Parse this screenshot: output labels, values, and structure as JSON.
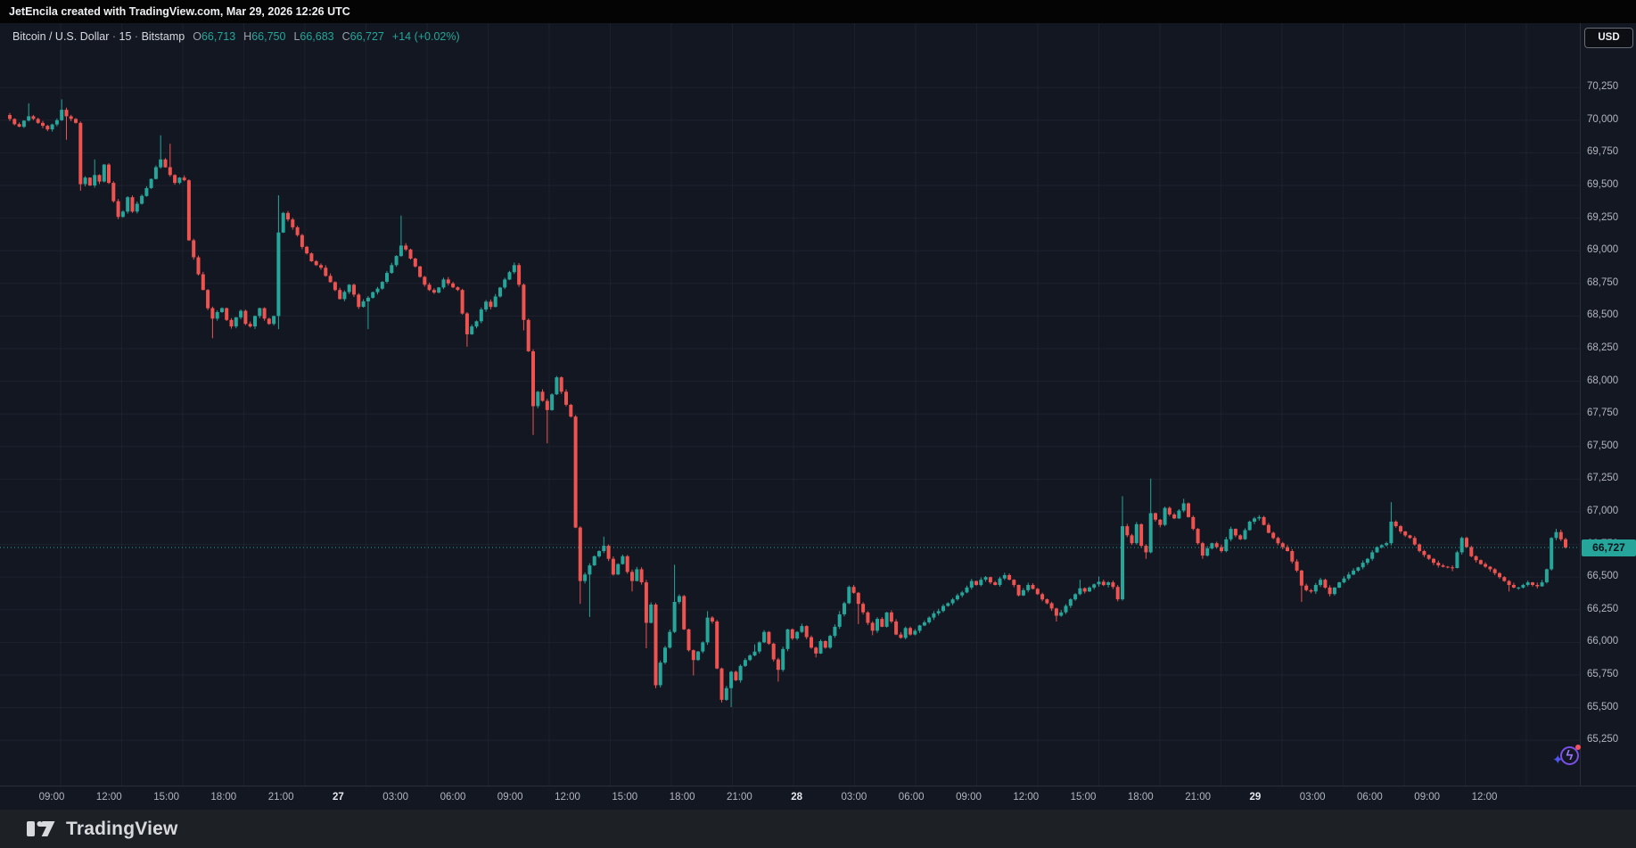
{
  "top_bar": {
    "attribution": "JetEncila created with TradingView.com, Mar 29, 2026 12:26 UTC"
  },
  "header": {
    "symbol": "Bitcoin / U.S. Dollar",
    "separator": "·",
    "interval": "15",
    "exchange": "Bitstamp",
    "o_label": "O",
    "open": "66,713",
    "h_label": "H",
    "high": "66,750",
    "l_label": "L",
    "low": "66,683",
    "c_label": "C",
    "close": "66,727",
    "change": "+14 (+0.02%)"
  },
  "price_axis": {
    "currency_button": "USD",
    "last_price_label": "66,727"
  },
  "footer": {
    "brand": "TradingView"
  },
  "chart_data": {
    "type": "candlestick",
    "title": "Bitcoin / U.S. Dollar · 15 · Bitstamp",
    "ohlc_readout": {
      "open": 66713,
      "high": 66750,
      "low": 66683,
      "close": 66727,
      "change_abs": 14,
      "change_pct": 0.02
    },
    "last_price": 66727,
    "y_axis": {
      "ticks": [
        70250,
        70000,
        69750,
        69500,
        69250,
        69000,
        68750,
        68500,
        68250,
        68000,
        67750,
        67500,
        67250,
        67000,
        66750,
        66500,
        66250,
        66000,
        65750,
        65500,
        65250
      ],
      "visible_range": [
        65100,
        70400
      ],
      "grid": true
    },
    "x_axis": {
      "labels": [
        "09:00",
        "12:00",
        "15:00",
        "18:00",
        "21:00",
        "27",
        "03:00",
        "06:00",
        "09:00",
        "12:00",
        "15:00",
        "18:00",
        "21:00",
        "28",
        "03:00",
        "06:00",
        "09:00",
        "12:00",
        "15:00",
        "18:00",
        "21:00",
        "29",
        "03:00",
        "06:00",
        "09:00",
        "12:00"
      ],
      "day_label_indices": [
        5,
        13,
        21
      ],
      "grid": true
    },
    "candle_count": 331,
    "price_path_format": "[candle_index, close, optional_high_wick, optional_low_wick] (0 = none)",
    "price_path": [
      [
        0,
        70010
      ],
      [
        2,
        69950
      ],
      [
        4,
        70030,
        70130,
        0
      ],
      [
        6,
        69980
      ],
      [
        8,
        69930
      ],
      [
        10,
        70000
      ],
      [
        11,
        70080,
        70160,
        0
      ],
      [
        12,
        70030,
        0,
        69850
      ],
      [
        13,
        70010
      ],
      [
        14,
        69980
      ],
      [
        15,
        69510,
        0,
        69460
      ],
      [
        16,
        69560
      ],
      [
        17,
        69500
      ],
      [
        18,
        69580,
        69700,
        0
      ],
      [
        19,
        69530
      ],
      [
        20,
        69660
      ],
      [
        21,
        69520
      ],
      [
        22,
        69380
      ],
      [
        23,
        69260
      ],
      [
        24,
        69300
      ],
      [
        25,
        69410
      ],
      [
        26,
        69300
      ],
      [
        27,
        69360
      ],
      [
        28,
        69420
      ],
      [
        29,
        69480
      ],
      [
        30,
        69550
      ],
      [
        31,
        69640
      ],
      [
        32,
        69700,
        69885,
        0
      ],
      [
        33,
        69640
      ],
      [
        34,
        69580,
        69820,
        0
      ],
      [
        35,
        69520
      ],
      [
        36,
        69560
      ],
      [
        37,
        69540
      ],
      [
        38,
        69080
      ],
      [
        39,
        68950
      ],
      [
        40,
        68820
      ],
      [
        41,
        68700
      ],
      [
        42,
        68560
      ],
      [
        43,
        68480,
        0,
        68330
      ],
      [
        44,
        68530
      ],
      [
        45,
        68560
      ],
      [
        46,
        68470
      ],
      [
        47,
        68420
      ],
      [
        48,
        68490
      ],
      [
        49,
        68540
      ],
      [
        50,
        68440
      ],
      [
        51,
        68420
      ],
      [
        52,
        68500
      ],
      [
        53,
        68560
      ],
      [
        54,
        68480
      ],
      [
        55,
        68440
      ],
      [
        56,
        68500
      ],
      [
        57,
        69140,
        69425,
        68400
      ],
      [
        58,
        69290
      ],
      [
        59,
        69240
      ],
      [
        60,
        69180
      ],
      [
        61,
        69120
      ],
      [
        62,
        69030
      ],
      [
        63,
        68980
      ],
      [
        64,
        68920
      ],
      [
        65,
        68890
      ],
      [
        66,
        68870
      ],
      [
        68,
        68760
      ],
      [
        70,
        68630
      ],
      [
        72,
        68740
      ],
      [
        74,
        68570
      ],
      [
        76,
        68640,
        0,
        68400
      ],
      [
        78,
        68710
      ],
      [
        80,
        68830
      ],
      [
        82,
        68960
      ],
      [
        83,
        69040,
        69270,
        0
      ],
      [
        84,
        69010
      ],
      [
        85,
        68940
      ],
      [
        86,
        68880
      ],
      [
        87,
        68800
      ],
      [
        88,
        68740
      ],
      [
        89,
        68700
      ],
      [
        90,
        68680
      ],
      [
        92,
        68780
      ],
      [
        94,
        68720
      ],
      [
        95,
        68700
      ],
      [
        96,
        68520
      ],
      [
        97,
        68360,
        0,
        68265
      ],
      [
        98,
        68420
      ],
      [
        99,
        68460
      ],
      [
        100,
        68550
      ],
      [
        101,
        68610
      ],
      [
        102,
        68570
      ],
      [
        103,
        68650
      ],
      [
        105,
        68780
      ],
      [
        107,
        68890,
        68910,
        0
      ],
      [
        108,
        68740
      ],
      [
        109,
        68470,
        0,
        68390
      ],
      [
        110,
        68230
      ],
      [
        111,
        67810,
        0,
        67590
      ],
      [
        112,
        67920
      ],
      [
        113,
        67850
      ],
      [
        114,
        67780,
        0,
        67525
      ],
      [
        115,
        67900
      ],
      [
        116,
        68030
      ],
      [
        117,
        67920
      ],
      [
        118,
        67820
      ],
      [
        119,
        67730
      ],
      [
        120,
        66880
      ],
      [
        121,
        66470,
        0,
        66295
      ],
      [
        122,
        66520
      ],
      [
        123,
        66590,
        0,
        66195
      ],
      [
        124,
        66660
      ],
      [
        125,
        66700
      ],
      [
        126,
        66740,
        66810,
        0
      ],
      [
        127,
        66640
      ],
      [
        128,
        66520
      ],
      [
        129,
        66600
      ],
      [
        130,
        66660
      ],
      [
        131,
        66540
      ],
      [
        132,
        66470,
        0,
        66390
      ],
      [
        133,
        66560
      ],
      [
        134,
        66460
      ],
      [
        135,
        66150,
        0,
        65955
      ],
      [
        136,
        66290
      ],
      [
        137,
        65672,
        0,
        65650
      ],
      [
        138,
        65845
      ],
      [
        139,
        65960
      ],
      [
        140,
        66080
      ],
      [
        141,
        66310,
        66595,
        0
      ],
      [
        142,
        66355
      ],
      [
        143,
        66100
      ],
      [
        144,
        65940
      ],
      [
        145,
        65865,
        0,
        65747
      ],
      [
        146,
        65930
      ],
      [
        147,
        66000
      ],
      [
        148,
        66190,
        66240,
        0
      ],
      [
        149,
        66160
      ],
      [
        150,
        65800
      ],
      [
        151,
        65560,
        0,
        65540
      ],
      [
        152,
        65650
      ],
      [
        153,
        65775,
        0,
        65505
      ],
      [
        154,
        65710
      ],
      [
        155,
        65820
      ],
      [
        156,
        65865
      ],
      [
        157,
        65900
      ],
      [
        158,
        65930,
        65985,
        0
      ],
      [
        159,
        66000
      ],
      [
        160,
        66080
      ],
      [
        161,
        65990
      ],
      [
        162,
        65870
      ],
      [
        163,
        65790,
        0,
        65700
      ],
      [
        164,
        65950
      ],
      [
        165,
        66100
      ],
      [
        166,
        66030
      ],
      [
        167,
        66080
      ],
      [
        168,
        66125
      ],
      [
        169,
        66040
      ],
      [
        170,
        65960
      ],
      [
        171,
        65915,
        0,
        65885
      ],
      [
        172,
        66010
      ],
      [
        173,
        65960
      ],
      [
        174,
        66050
      ],
      [
        175,
        66120
      ],
      [
        176,
        66215,
        66240,
        0
      ],
      [
        177,
        66300
      ],
      [
        178,
        66425
      ],
      [
        179,
        66380
      ],
      [
        180,
        66295,
        0,
        66140
      ],
      [
        181,
        66230
      ],
      [
        182,
        66150
      ],
      [
        183,
        66090,
        0,
        66055
      ],
      [
        184,
        66180
      ],
      [
        185,
        66120
      ],
      [
        186,
        66230
      ],
      [
        187,
        66160
      ],
      [
        188,
        66060
      ],
      [
        189,
        66035
      ],
      [
        190,
        66110
      ],
      [
        191,
        66060
      ],
      [
        193,
        66130
      ],
      [
        195,
        66190
      ],
      [
        197,
        66240
      ],
      [
        199,
        66300
      ],
      [
        201,
        66360
      ],
      [
        203,
        66420
      ],
      [
        204,
        66470
      ],
      [
        205,
        66440
      ],
      [
        206,
        66480
      ],
      [
        207,
        66500
      ],
      [
        208,
        66460
      ],
      [
        209,
        66440
      ],
      [
        210,
        66490
      ],
      [
        211,
        66515,
        66530,
        0
      ],
      [
        212,
        66480
      ],
      [
        213,
        66440
      ],
      [
        214,
        66360
      ],
      [
        215,
        66400
      ],
      [
        216,
        66440
      ],
      [
        217,
        66410
      ],
      [
        218,
        66370
      ],
      [
        219,
        66330
      ],
      [
        220,
        66300
      ],
      [
        221,
        66260
      ],
      [
        222,
        66205,
        0,
        66160
      ],
      [
        223,
        66230
      ],
      [
        224,
        66280
      ],
      [
        225,
        66330
      ],
      [
        226,
        66370
      ],
      [
        227,
        66415,
        66480,
        0
      ],
      [
        228,
        66390
      ],
      [
        229,
        66420
      ],
      [
        230,
        66445
      ],
      [
        231,
        66465,
        66505,
        0
      ],
      [
        232,
        66440
      ],
      [
        233,
        66460
      ],
      [
        234,
        66425
      ],
      [
        235,
        66330
      ],
      [
        236,
        66890,
        67120,
        0
      ],
      [
        237,
        66820
      ],
      [
        238,
        66760
      ],
      [
        239,
        66905
      ],
      [
        240,
        66740
      ],
      [
        241,
        66690,
        0,
        66640
      ],
      [
        242,
        66990,
        67255,
        0
      ],
      [
        243,
        66940
      ],
      [
        244,
        66900
      ],
      [
        245,
        67030
      ],
      [
        246,
        66980
      ],
      [
        247,
        66950
      ],
      [
        248,
        67010
      ],
      [
        249,
        67065,
        67100,
        0
      ],
      [
        250,
        66960
      ],
      [
        251,
        66870
      ],
      [
        252,
        66760
      ],
      [
        253,
        66665,
        0,
        66640
      ],
      [
        254,
        66720
      ],
      [
        255,
        66760
      ],
      [
        256,
        66730
      ],
      [
        257,
        66700
      ],
      [
        258,
        66790
      ],
      [
        259,
        66870
      ],
      [
        260,
        66820
      ],
      [
        261,
        66790
      ],
      [
        262,
        66860
      ],
      [
        263,
        66925
      ],
      [
        264,
        66950
      ],
      [
        265,
        66960,
        66975,
        0
      ],
      [
        266,
        66900
      ],
      [
        267,
        66840
      ],
      [
        268,
        66800
      ],
      [
        269,
        66760
      ],
      [
        270,
        66730
      ],
      [
        271,
        66700
      ],
      [
        272,
        66620
      ],
      [
        273,
        66550
      ],
      [
        274,
        66435,
        0,
        66310
      ],
      [
        275,
        66400
      ],
      [
        276,
        66390
      ],
      [
        277,
        66440
      ],
      [
        278,
        66480
      ],
      [
        279,
        66420
      ],
      [
        280,
        66370
      ],
      [
        281,
        66420
      ],
      [
        282,
        66460
      ],
      [
        283,
        66490
      ],
      [
        284,
        66520
      ],
      [
        285,
        66550
      ],
      [
        286,
        66575
      ],
      [
        287,
        66610
      ],
      [
        288,
        66640
      ],
      [
        289,
        66690
      ],
      [
        290,
        66730
      ],
      [
        291,
        66745
      ],
      [
        292,
        66760
      ],
      [
        293,
        66925,
        67075,
        0
      ],
      [
        294,
        66890
      ],
      [
        295,
        66850
      ],
      [
        296,
        66820
      ],
      [
        297,
        66800
      ],
      [
        298,
        66750
      ],
      [
        299,
        66700
      ],
      [
        300,
        66670
      ],
      [
        301,
        66640
      ],
      [
        302,
        66610
      ],
      [
        303,
        66590
      ],
      [
        304,
        66580
      ],
      [
        305,
        66575
      ],
      [
        306,
        66570,
        0,
        66545
      ],
      [
        307,
        66690
      ],
      [
        308,
        66800,
        66810,
        0
      ],
      [
        309,
        66730
      ],
      [
        310,
        66660
      ],
      [
        311,
        66630
      ],
      [
        312,
        66600
      ],
      [
        313,
        66580
      ],
      [
        314,
        66560
      ],
      [
        315,
        66530
      ],
      [
        316,
        66500
      ],
      [
        317,
        66470
      ],
      [
        318,
        66440,
        0,
        66390
      ],
      [
        319,
        66420
      ],
      [
        320,
        66420
      ],
      [
        321,
        66440
      ],
      [
        322,
        66460
      ],
      [
        323,
        66440
      ],
      [
        324,
        66430
      ],
      [
        325,
        66460
      ],
      [
        326,
        66560
      ],
      [
        327,
        66800
      ],
      [
        328,
        66845,
        66870,
        0
      ],
      [
        329,
        66790
      ],
      [
        330,
        66727
      ]
    ],
    "colors": {
      "up": "#26a69a",
      "down": "#ef5350",
      "background": "#131722",
      "grid": "#1e222d",
      "axis_text": "#b2b5be",
      "last_price_line": "#26a69a",
      "last_price_tag_bg": "#26a69a"
    }
  }
}
